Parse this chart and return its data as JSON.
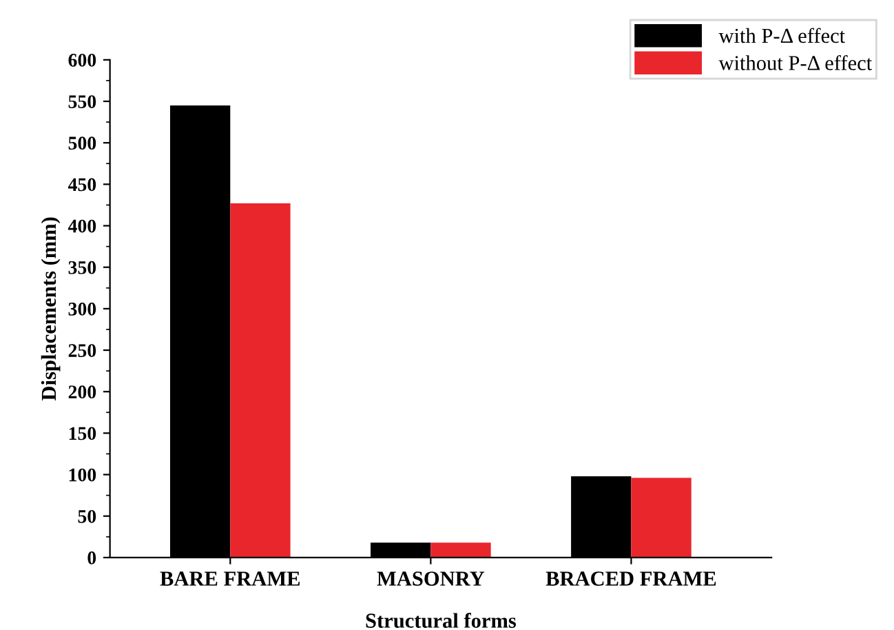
{
  "chart_data": {
    "type": "bar",
    "xlabel": "Structural forms",
    "ylabel": "Displacements (mm)",
    "categories": [
      "BARE FRAME",
      "MASONRY",
      "BRACED FRAME"
    ],
    "series": [
      {
        "name": "with P-Δ effect",
        "color": "#000000",
        "values": [
          545,
          18,
          98
        ]
      },
      {
        "name": "without P-Δ effect",
        "color": "#e8262c",
        "values": [
          427,
          18,
          96
        ]
      }
    ],
    "ylim": [
      0,
      600
    ],
    "yticks": [
      0,
      50,
      100,
      150,
      200,
      250,
      300,
      350,
      400,
      450,
      500,
      550,
      600
    ],
    "grid": false,
    "legend": "top right"
  }
}
